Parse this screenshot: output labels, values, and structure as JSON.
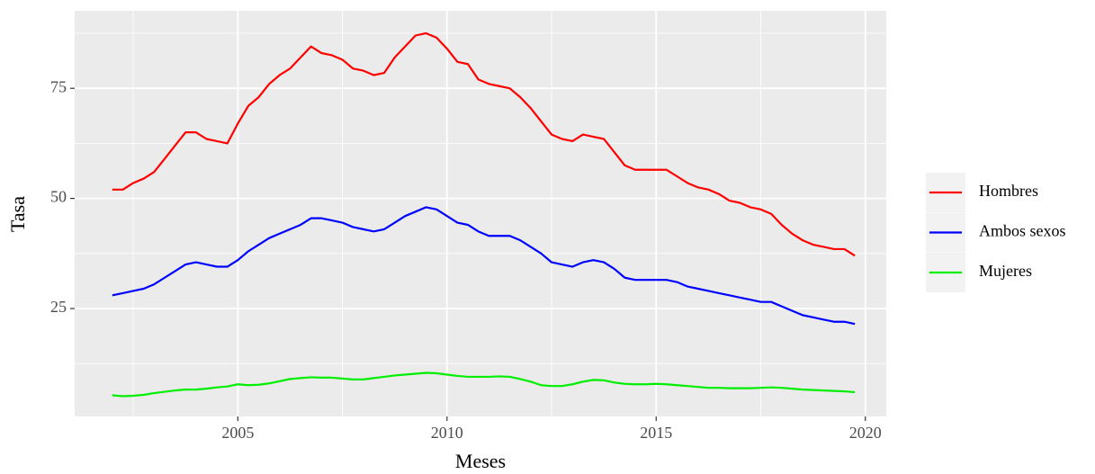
{
  "chart_data": {
    "type": "line",
    "x_label": "Meses",
    "y_label": "Tasa",
    "xlim": [
      2001.1,
      2020.5
    ],
    "ylim": [
      0.5,
      92.6
    ],
    "xticks": [
      2005,
      2010,
      2015,
      2020
    ],
    "yticks": [
      25,
      50,
      75
    ],
    "xminorticks": [
      2002.5,
      2007.5,
      2012.5,
      2017.5
    ],
    "yminorticks": [
      12.5,
      37.5,
      62.5,
      87.5
    ],
    "grid": true,
    "legend_position": "right",
    "x": [
      2002,
      2002.25,
      2002.5,
      2002.75,
      2003,
      2003.25,
      2003.5,
      2003.75,
      2004,
      2004.25,
      2004.5,
      2004.75,
      2005,
      2005.25,
      2005.5,
      2005.75,
      2006,
      2006.25,
      2006.5,
      2006.75,
      2007,
      2007.25,
      2007.5,
      2007.75,
      2008,
      2008.25,
      2008.5,
      2008.75,
      2009,
      2009.25,
      2009.5,
      2009.75,
      2010,
      2010.25,
      2010.5,
      2010.75,
      2011,
      2011.25,
      2011.5,
      2011.75,
      2012,
      2012.25,
      2012.5,
      2012.75,
      2013,
      2013.25,
      2013.5,
      2013.75,
      2014,
      2014.25,
      2014.5,
      2014.75,
      2015,
      2015.25,
      2015.5,
      2015.75,
      2016,
      2016.25,
      2016.5,
      2016.75,
      2017,
      2017.25,
      2017.5,
      2017.75,
      2018,
      2018.25,
      2018.5,
      2018.75,
      2019,
      2019.25,
      2019.5,
      2019.75
    ],
    "series": [
      {
        "name": "Hombres",
        "color": "#ff0000",
        "values": [
          52,
          52,
          53.5,
          54.5,
          56,
          59,
          62,
          65,
          65,
          63.5,
          63,
          62.5,
          67,
          71,
          73,
          76,
          78,
          79.5,
          82,
          84.5,
          83,
          82.5,
          81.5,
          79.5,
          79,
          78,
          78.5,
          82,
          84.5,
          87,
          87.5,
          86.5,
          84,
          81,
          80.5,
          77,
          76,
          75.5,
          75,
          73,
          70.5,
          67.5,
          64.5,
          63.5,
          63,
          64.5,
          64,
          63.5,
          60.5,
          57.5,
          56.5,
          56.5,
          56.5,
          56.5,
          55,
          53.5,
          52.5,
          52,
          51,
          49.5,
          49,
          48,
          47.5,
          46.5,
          44,
          42,
          40.5,
          39.5,
          39,
          38.5,
          38.5,
          37
        ]
      },
      {
        "name": "Ambos sexos",
        "color": "#0000ff",
        "values": [
          28,
          28.5,
          29,
          29.5,
          30.5,
          32,
          33.5,
          35,
          35.5,
          35,
          34.5,
          34.5,
          36,
          38,
          39.5,
          41,
          42,
          43,
          44,
          45.5,
          45.5,
          45,
          44.5,
          43.5,
          43,
          42.5,
          43,
          44.5,
          46,
          47,
          48,
          47.5,
          46,
          44.5,
          44,
          42.5,
          41.5,
          41.5,
          41.5,
          40.5,
          39,
          37.5,
          35.5,
          35,
          34.5,
          35.5,
          36,
          35.5,
          34,
          32,
          31.5,
          31.5,
          31.5,
          31.5,
          31,
          30,
          29.5,
          29,
          28.5,
          28,
          27.5,
          27,
          26.5,
          26.5,
          25.5,
          24.5,
          23.5,
          23,
          22.5,
          22,
          22,
          21.5
        ]
      },
      {
        "name": "Mujeres",
        "color": "#00ee00",
        "values": [
          5.3,
          5.1,
          5.2,
          5.4,
          5.8,
          6.1,
          6.4,
          6.6,
          6.6,
          6.8,
          7.1,
          7.3,
          7.8,
          7.6,
          7.7,
          8.0,
          8.5,
          9.0,
          9.2,
          9.4,
          9.3,
          9.3,
          9.1,
          8.9,
          8.9,
          9.2,
          9.5,
          9.8,
          10.0,
          10.2,
          10.4,
          10.3,
          10.0,
          9.7,
          9.5,
          9.5,
          9.5,
          9.6,
          9.5,
          9.0,
          8.4,
          7.6,
          7.4,
          7.4,
          7.8,
          8.4,
          8.8,
          8.7,
          8.2,
          7.9,
          7.8,
          7.8,
          7.9,
          7.8,
          7.6,
          7.4,
          7.2,
          7.0,
          7.0,
          6.9,
          6.9,
          6.9,
          7.0,
          7.1,
          7.0,
          6.8,
          6.6,
          6.5,
          6.4,
          6.3,
          6.2,
          6.0
        ]
      }
    ]
  }
}
